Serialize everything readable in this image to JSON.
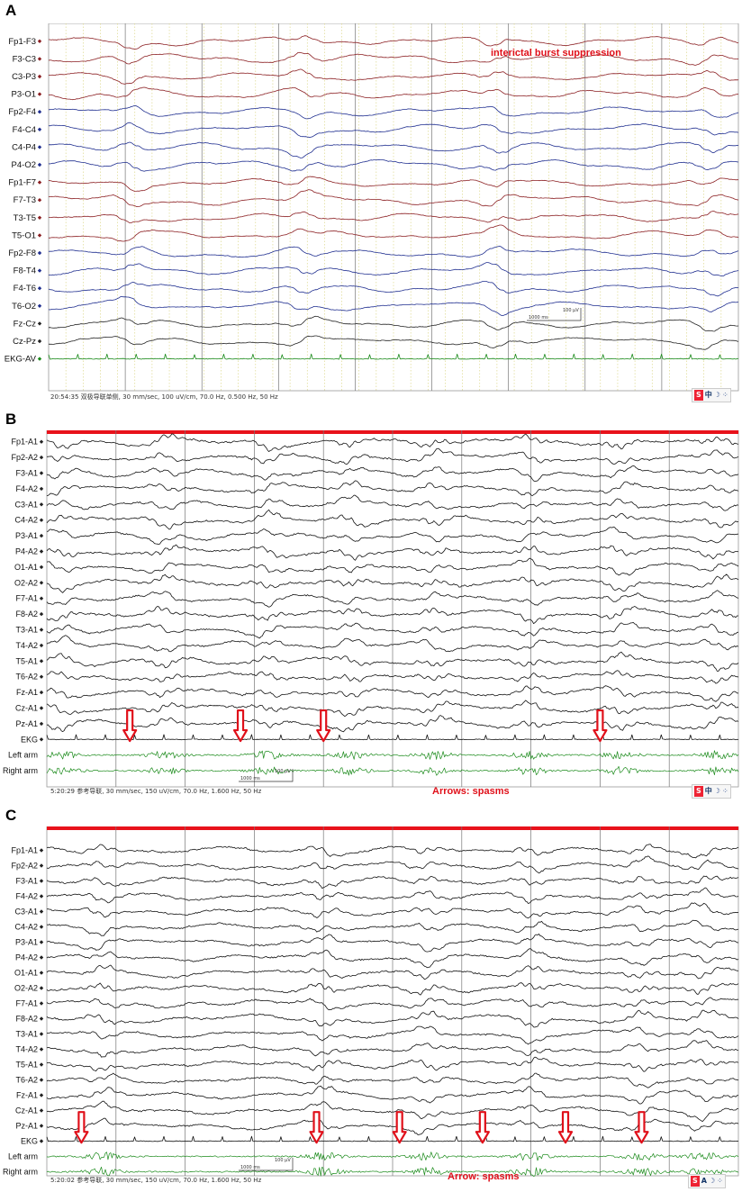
{
  "figure": {
    "panels": [
      {
        "letter": "A",
        "channels": [
          "Fp1-F3",
          "F3-C3",
          "C3-P3",
          "P3-O1",
          "Fp2-F4",
          "F4-C4",
          "C4-P4",
          "P4-O2",
          "Fp1-F7",
          "F7-T3",
          "T3-T5",
          "T5-O1",
          "Fp2-F8",
          "F8-T4",
          "F4-T6",
          "T6-O2",
          "Fz-Cz",
          "Cz-Pz",
          "EKG-AV"
        ],
        "channel_colors": [
          "#8b1f22",
          "#8b1f22",
          "#8b1f22",
          "#8b1f22",
          "#1f2e8f",
          "#1f2e8f",
          "#1f2e8f",
          "#1f2e8f",
          "#8b1f22",
          "#8b1f22",
          "#8b1f22",
          "#8b1f22",
          "#1f2e8f",
          "#1f2e8f",
          "#1f2e8f",
          "#1f2e8f",
          "#222222",
          "#222222",
          "#1a8a1a"
        ],
        "annotation": "interictal burst suppression",
        "status": "20:54:35 双极导联单侧, 30 mm/sec, 100 uV/cm, 70.0 Hz, 0.500 Hz, 50 Hz",
        "scale_bar": {
          "time": "1000 ms",
          "amp": "100 µV"
        },
        "ime": {
          "logo": "S",
          "mode": "中",
          "moon": "☽",
          "dots": "⁘"
        },
        "arrows": [],
        "bursts": [
          0.12,
          0.37,
          0.65,
          0.96
        ]
      },
      {
        "letter": "B",
        "channels": [
          "Fp1-A1",
          "Fp2-A2",
          "F3-A1",
          "F4-A2",
          "C3-A1",
          "C4-A2",
          "P3-A1",
          "P4-A2",
          "O1-A1",
          "O2-A2",
          "F7-A1",
          "F8-A2",
          "T3-A1",
          "T4-A2",
          "T5-A1",
          "T6-A2",
          "Fz-A1",
          "Cz-A1",
          "Pz-A1",
          "EKG",
          "Left arm",
          "Right arm"
        ],
        "channel_colors": [],
        "annotation": "Arrows: spasms",
        "status": "5:20:29 参考导联, 30 mm/sec, 150 uV/cm, 70.0 Hz, 1.600 Hz, 50 Hz",
        "scale_bar": {
          "time": "1000 ms",
          "amp": "100 µV"
        },
        "ime": {
          "logo": "S",
          "mode": "中",
          "moon": "☽",
          "dots": "⁘"
        },
        "arrows": [
          0.12,
          0.28,
          0.4,
          0.8
        ],
        "bursts": [
          0.02,
          0.17,
          0.32,
          0.44,
          0.56,
          0.7,
          0.83,
          0.97
        ]
      },
      {
        "letter": "C",
        "channels": [
          "Fp1-A1",
          "Fp2-A2",
          "F3-A1",
          "F4-A2",
          "C3-A1",
          "C4-A2",
          "P3-A1",
          "P4-A2",
          "O1-A1",
          "O2-A2",
          "F7-A1",
          "F8-A2",
          "T3-A1",
          "T4-A2",
          "T5-A1",
          "T6-A2",
          "Fz-A1",
          "Cz-A1",
          "Pz-A1",
          "EKG",
          "Left arm",
          "Right arm"
        ],
        "channel_colors": [],
        "annotation": "Arrow: spasms",
        "status": "5:20:02 参考导联, 30 mm/sec, 150 uV/cm, 70.0 Hz, 1.600 Hz, 50 Hz",
        "scale_bar": {
          "time": "1000 ms",
          "amp": "100 µV"
        },
        "ime": {
          "logo": "S",
          "mode": "A",
          "moon": "☽",
          "dots": "⁘"
        },
        "arrows": [
          0.05,
          0.39,
          0.51,
          0.63,
          0.75,
          0.86
        ],
        "bursts": [
          0.08,
          0.4,
          0.55,
          0.7,
          0.86,
          0.95
        ]
      }
    ]
  },
  "chart_data": [
    {
      "type": "line",
      "title": "interictal burst suppression",
      "series": [
        {
          "name": "Fp1-F3"
        },
        {
          "name": "F3-C3"
        },
        {
          "name": "C3-P3"
        },
        {
          "name": "P3-O1"
        },
        {
          "name": "Fp2-F4"
        },
        {
          "name": "F4-C4"
        },
        {
          "name": "C4-P4"
        },
        {
          "name": "P4-O2"
        },
        {
          "name": "Fp1-F7"
        },
        {
          "name": "F7-T3"
        },
        {
          "name": "T3-T5"
        },
        {
          "name": "T5-O1"
        },
        {
          "name": "Fp2-F8"
        },
        {
          "name": "F8-T4"
        },
        {
          "name": "F4-T6"
        },
        {
          "name": "T6-O2"
        },
        {
          "name": "Fz-Cz"
        },
        {
          "name": "Cz-Pz"
        },
        {
          "name": "EKG-AV"
        }
      ],
      "settings": {
        "speed": "30 mm/sec",
        "sensitivity": "100 uV/cm",
        "hf": "70.0 Hz",
        "lf": "0.500 Hz",
        "notch": "50 Hz"
      },
      "grid": true
    },
    {
      "type": "line",
      "title": "Arrows: spasms",
      "series": [
        {
          "name": "Fp1-A1"
        },
        {
          "name": "Fp2-A2"
        },
        {
          "name": "F3-A1"
        },
        {
          "name": "F4-A2"
        },
        {
          "name": "C3-A1"
        },
        {
          "name": "C4-A2"
        },
        {
          "name": "P3-A1"
        },
        {
          "name": "P4-A2"
        },
        {
          "name": "O1-A1"
        },
        {
          "name": "O2-A2"
        },
        {
          "name": "F7-A1"
        },
        {
          "name": "F8-A2"
        },
        {
          "name": "T3-A1"
        },
        {
          "name": "T4-A2"
        },
        {
          "name": "T5-A1"
        },
        {
          "name": "T6-A2"
        },
        {
          "name": "Fz-A1"
        },
        {
          "name": "Cz-A1"
        },
        {
          "name": "Pz-A1"
        },
        {
          "name": "EKG"
        },
        {
          "name": "Left arm"
        },
        {
          "name": "Right arm"
        }
      ],
      "settings": {
        "speed": "30 mm/sec",
        "sensitivity": "150 uV/cm",
        "hf": "70.0 Hz",
        "lf": "1.600 Hz",
        "notch": "50 Hz"
      },
      "spasm_arrow_count": 4,
      "grid": true
    },
    {
      "type": "line",
      "title": "Arrow: spasms",
      "series": [
        {
          "name": "Fp1-A1"
        },
        {
          "name": "Fp2-A2"
        },
        {
          "name": "F3-A1"
        },
        {
          "name": "F4-A2"
        },
        {
          "name": "C3-A1"
        },
        {
          "name": "C4-A2"
        },
        {
          "name": "P3-A1"
        },
        {
          "name": "P4-A2"
        },
        {
          "name": "O1-A1"
        },
        {
          "name": "O2-A2"
        },
        {
          "name": "F7-A1"
        },
        {
          "name": "F8-A2"
        },
        {
          "name": "T3-A1"
        },
        {
          "name": "T4-A2"
        },
        {
          "name": "T5-A1"
        },
        {
          "name": "T6-A2"
        },
        {
          "name": "Fz-A1"
        },
        {
          "name": "Cz-A1"
        },
        {
          "name": "Pz-A1"
        },
        {
          "name": "EKG"
        },
        {
          "name": "Left arm"
        },
        {
          "name": "Right arm"
        }
      ],
      "settings": {
        "speed": "30 mm/sec",
        "sensitivity": "150 uV/cm",
        "hf": "70.0 Hz",
        "lf": "1.600 Hz",
        "notch": "50 Hz"
      },
      "spasm_arrow_count": 6,
      "grid": true
    }
  ]
}
